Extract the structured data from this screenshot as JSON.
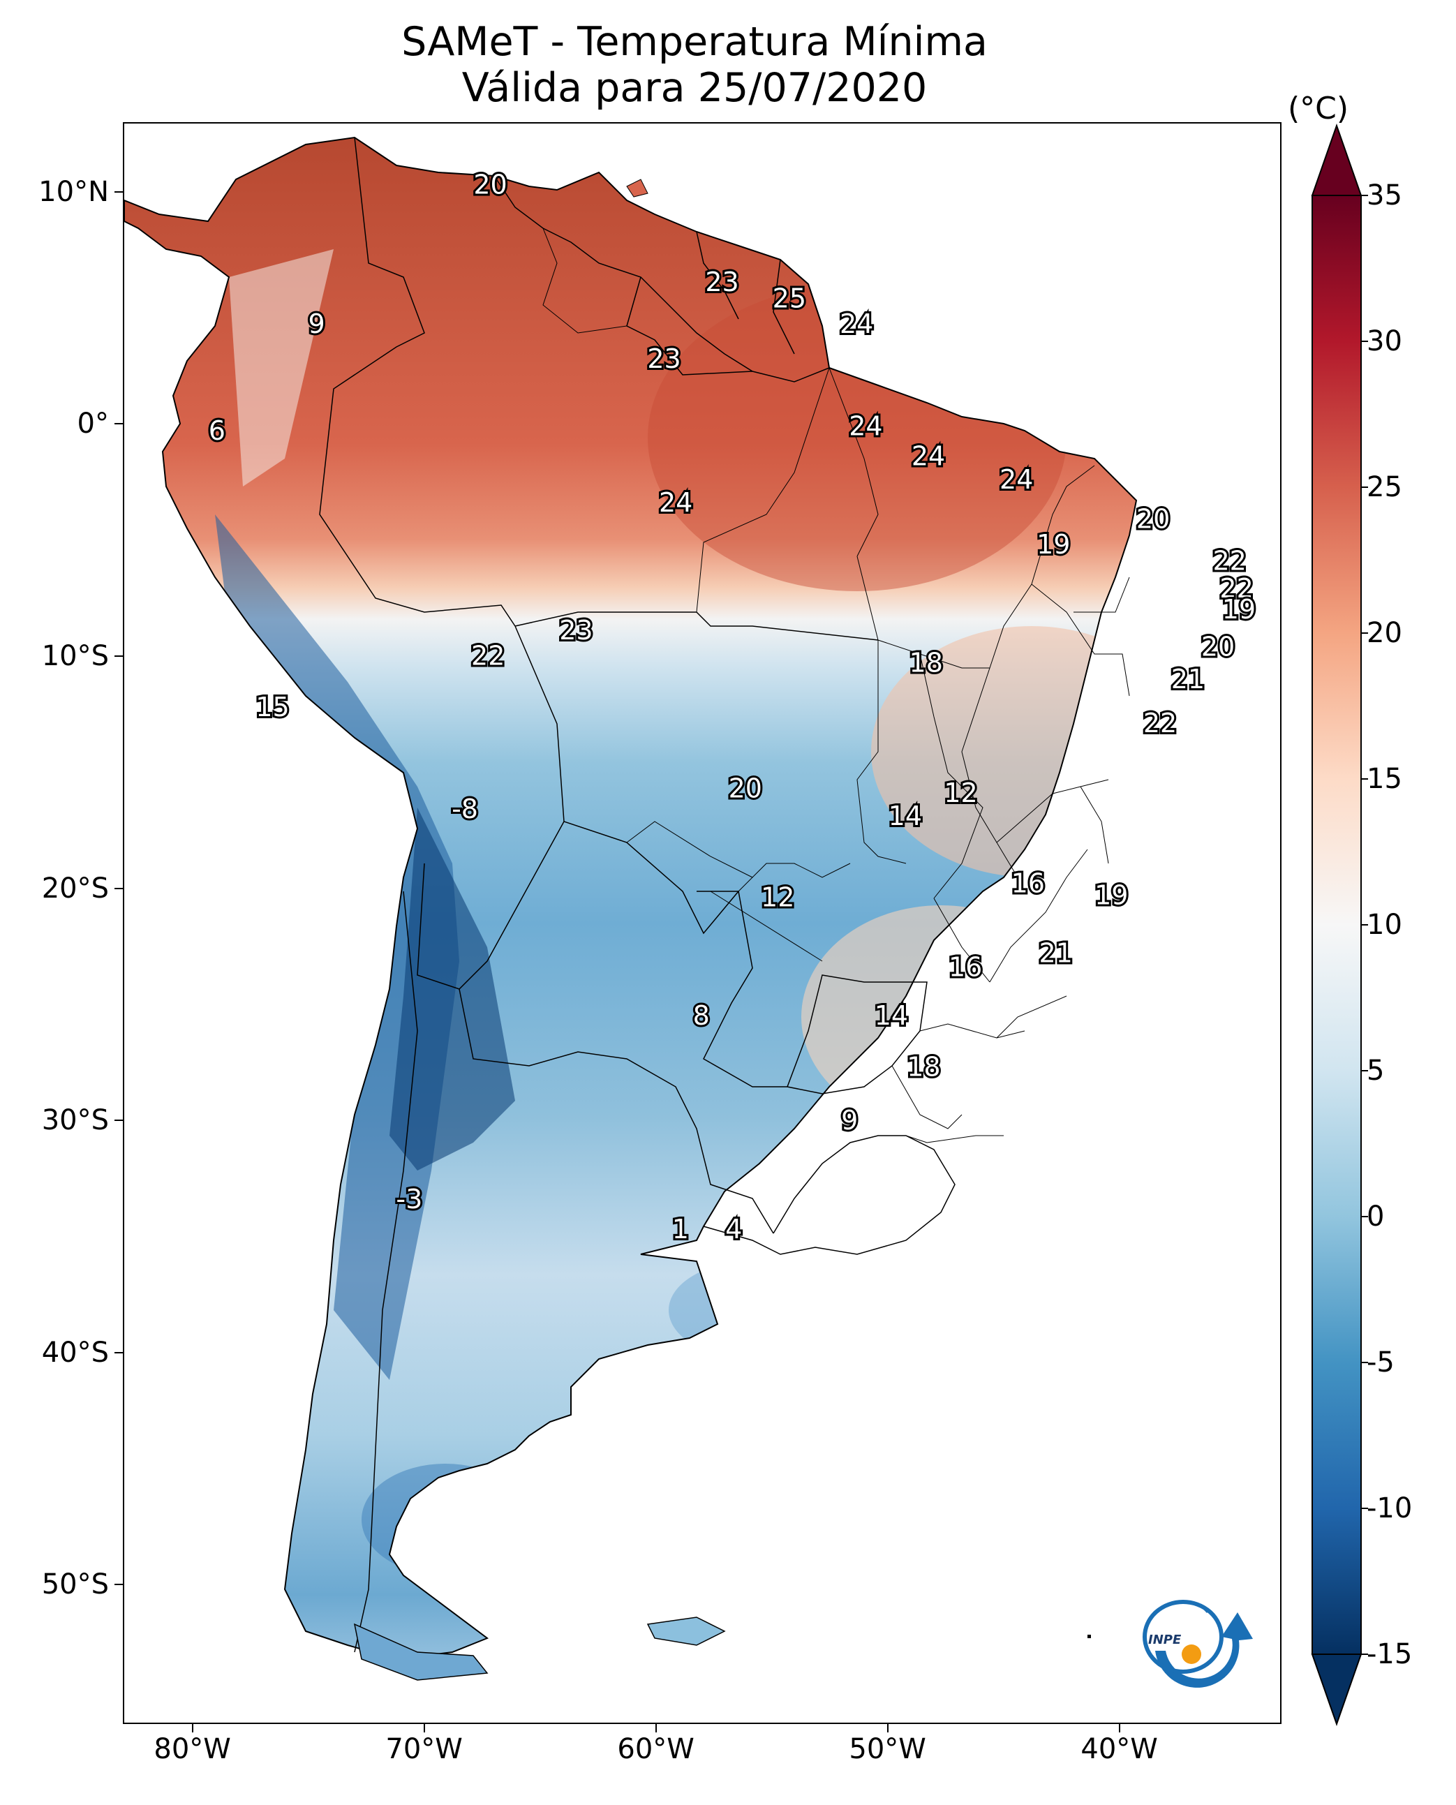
{
  "title": {
    "line1": "SAMeT - Temperatura Mínima",
    "line2": "Válida para 25/07/2020"
  },
  "axes": {
    "lat_ticks": [
      {
        "label": "10°N",
        "value": 10
      },
      {
        "label": "0°",
        "value": 0
      },
      {
        "label": "10°S",
        "value": -10
      },
      {
        "label": "20°S",
        "value": -20
      },
      {
        "label": "30°S",
        "value": -30
      },
      {
        "label": "40°S",
        "value": -40
      },
      {
        "label": "50°S",
        "value": -50
      }
    ],
    "lon_ticks": [
      {
        "label": "80°W",
        "value": -80
      },
      {
        "label": "70°W",
        "value": -70
      },
      {
        "label": "60°W",
        "value": -60
      },
      {
        "label": "50°W",
        "value": -50
      },
      {
        "label": "40°W",
        "value": -40
      }
    ],
    "lon_range": [
      -83,
      -33
    ],
    "lat_range": [
      -56,
      13
    ]
  },
  "colorbar": {
    "unit": "(°C)",
    "min": -15,
    "max": 35,
    "extend": "both",
    "tick_labels": [
      {
        "label": "35",
        "value": 35
      },
      {
        "label": "30",
        "value": 30
      },
      {
        "label": "25",
        "value": 25
      },
      {
        "label": "20",
        "value": 20
      },
      {
        "label": "15",
        "value": 15
      },
      {
        "label": "10",
        "value": 10
      },
      {
        "label": "5",
        "value": 5
      },
      {
        "label": "0",
        "value": 0
      },
      {
        "label": "-5",
        "value": -5
      },
      {
        "label": "-10",
        "value": -10
      },
      {
        "label": "-15",
        "value": -15
      }
    ],
    "colormap": "RdBu_r",
    "colors": [
      "#053061",
      "#2166ac",
      "#4393c3",
      "#92c5de",
      "#d1e5f0",
      "#f7f7f7",
      "#fddbc7",
      "#f4a582",
      "#d6604d",
      "#b2182b",
      "#67001f"
    ]
  },
  "value_labels": [
    {
      "text": "20",
      "lon": -67.2,
      "lat": 10.4
    },
    {
      "text": "23",
      "lon": -57.2,
      "lat": 6.2
    },
    {
      "text": "25",
      "lon": -54.3,
      "lat": 5.5
    },
    {
      "text": "24",
      "lon": -51.4,
      "lat": 4.4
    },
    {
      "text": "9",
      "lon": -74.7,
      "lat": 4.4
    },
    {
      "text": "23",
      "lon": -59.7,
      "lat": 2.9
    },
    {
      "text": "6",
      "lon": -79.0,
      "lat": -0.2
    },
    {
      "text": "24",
      "lon": -51.0,
      "lat": 0.0
    },
    {
      "text": "24",
      "lon": -48.3,
      "lat": -1.3
    },
    {
      "text": "24",
      "lon": -44.5,
      "lat": -2.3
    },
    {
      "text": "24",
      "lon": -59.2,
      "lat": -3.3
    },
    {
      "text": "20",
      "lon": -38.6,
      "lat": -4.0
    },
    {
      "text": "19",
      "lon": -42.9,
      "lat": -5.1
    },
    {
      "text": "22",
      "lon": -35.3,
      "lat": -5.8
    },
    {
      "text": "22",
      "lon": -35.0,
      "lat": -7.0
    },
    {
      "text": "19",
      "lon": -34.9,
      "lat": -7.9
    },
    {
      "text": "23",
      "lon": -63.5,
      "lat": -8.8
    },
    {
      "text": "20",
      "lon": -35.8,
      "lat": -9.5
    },
    {
      "text": "22",
      "lon": -67.3,
      "lat": -9.9
    },
    {
      "text": "18",
      "lon": -48.4,
      "lat": -10.2
    },
    {
      "text": "21",
      "lon": -37.1,
      "lat": -10.9
    },
    {
      "text": "15",
      "lon": -76.6,
      "lat": -12.1
    },
    {
      "text": "22",
      "lon": -38.3,
      "lat": -12.8
    },
    {
      "text": "20",
      "lon": -56.2,
      "lat": -15.6
    },
    {
      "text": "12",
      "lon": -46.9,
      "lat": -15.8
    },
    {
      "text": "-8",
      "lon": -68.3,
      "lat": -16.5
    },
    {
      "text": "14",
      "lon": -49.3,
      "lat": -16.8
    },
    {
      "text": "16",
      "lon": -44.0,
      "lat": -19.7
    },
    {
      "text": "19",
      "lon": -40.4,
      "lat": -20.2
    },
    {
      "text": "12",
      "lon": -54.8,
      "lat": -20.3
    },
    {
      "text": "21",
      "lon": -42.8,
      "lat": -22.7
    },
    {
      "text": "16",
      "lon": -46.7,
      "lat": -23.3
    },
    {
      "text": "8",
      "lon": -58.1,
      "lat": -25.4
    },
    {
      "text": "14",
      "lon": -49.9,
      "lat": -25.4
    },
    {
      "text": "18",
      "lon": -48.5,
      "lat": -27.6
    },
    {
      "text": "9",
      "lon": -51.7,
      "lat": -29.9
    },
    {
      "text": "-3",
      "lon": -70.7,
      "lat": -33.3
    },
    {
      "text": "1",
      "lon": -59.0,
      "lat": -34.6
    },
    {
      "text": "4",
      "lon": -56.7,
      "lat": -34.6
    }
  ],
  "logo": {
    "text": "INPE"
  }
}
